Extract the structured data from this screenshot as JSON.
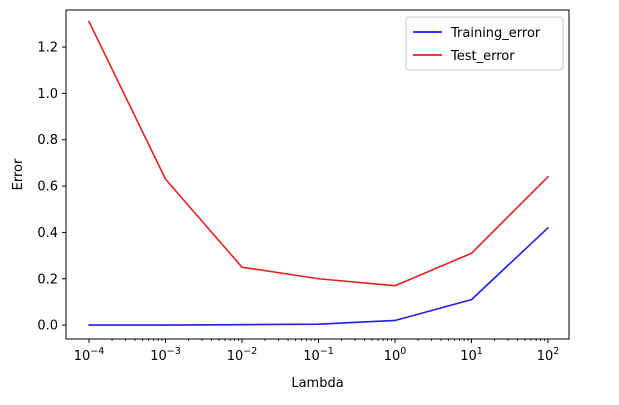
{
  "chart_data": {
    "type": "line",
    "xscale": "log",
    "x": [
      0.0001,
      0.001,
      0.01,
      0.1,
      1,
      10,
      100
    ],
    "x_tick_labels": [
      {
        "base": "10",
        "exp": "−4"
      },
      {
        "base": "10",
        "exp": "−3"
      },
      {
        "base": "10",
        "exp": "−2"
      },
      {
        "base": "10",
        "exp": "−1"
      },
      {
        "base": "10",
        "exp": "0"
      },
      {
        "base": "10",
        "exp": "1"
      },
      {
        "base": "10",
        "exp": "2"
      }
    ],
    "y_ticks": [
      0.0,
      0.2,
      0.4,
      0.6,
      0.8,
      1.0,
      1.2
    ],
    "y_tick_labels": [
      "0.0",
      "0.2",
      "0.4",
      "0.6",
      "0.8",
      "1.0",
      "1.2"
    ],
    "ylim": [
      -0.06,
      1.36
    ],
    "xlabel": "Lambda",
    "ylabel": "Error",
    "legend_position": "top-right",
    "grid": false,
    "series": [
      {
        "name": "Training_error",
        "color": "#1f1fe6",
        "values": [
          0.0,
          0.0,
          0.002,
          0.004,
          0.02,
          0.11,
          0.42
        ]
      },
      {
        "name": "Test_error",
        "color": "#e62020",
        "values": [
          1.31,
          0.63,
          0.25,
          0.2,
          0.17,
          0.31,
          0.64
        ]
      }
    ]
  }
}
